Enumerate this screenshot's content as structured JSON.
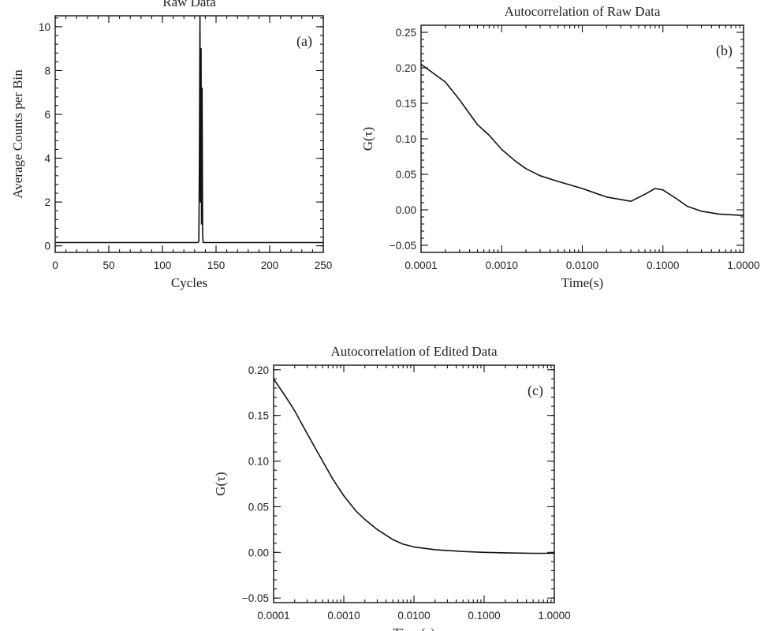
{
  "chart_data": [
    {
      "id": "a",
      "type": "line",
      "title": "Raw Data",
      "xlabel": "Cycles",
      "ylabel": "Average Counts per Bin",
      "panel_label": "(a)",
      "xlim": [
        0,
        250
      ],
      "ylim": [
        -0.3,
        10.5
      ],
      "x_ticks": [
        0,
        50,
        100,
        150,
        200,
        250
      ],
      "x_tick_labels": [
        "0",
        "50",
        "100",
        "150",
        "200",
        "250"
      ],
      "y_ticks": [
        0,
        2,
        4,
        6,
        8,
        10
      ],
      "y_tick_labels": [
        "0",
        "2",
        "4",
        "6",
        "8",
        "10"
      ],
      "series": [
        {
          "x": [
            0,
            50,
            100,
            133,
            134,
            134.5,
            135,
            135.5,
            136,
            136.5,
            137,
            137.5,
            138,
            150,
            200,
            250
          ],
          "y": [
            0.15,
            0.15,
            0.15,
            0.15,
            0.2,
            4.0,
            10.5,
            2.0,
            9.0,
            1.0,
            7.2,
            0.5,
            0.15,
            0.15,
            0.15,
            0.15
          ]
        }
      ]
    },
    {
      "id": "b",
      "type": "line",
      "title": "Autocorrelation of Raw Data",
      "xlabel": "Time(s)",
      "ylabel": "G(τ)",
      "panel_label": "(b)",
      "x_scale": "log",
      "xlim": [
        0.0001,
        1.0
      ],
      "ylim": [
        -0.06,
        0.26
      ],
      "x_ticks": [
        0.0001,
        0.001,
        0.01,
        0.1,
        1.0
      ],
      "x_tick_labels": [
        "0.0001",
        "0.0010",
        "0.0100",
        "0.1000",
        "1.0000"
      ],
      "y_ticks": [
        -0.05,
        0.0,
        0.05,
        0.1,
        0.15,
        0.2,
        0.25
      ],
      "y_tick_labels": [
        "−0.05",
        "0.00",
        "0.05",
        "0.10",
        "0.15",
        "0.20",
        "0.25"
      ],
      "series": [
        {
          "x": [
            0.0001,
            0.0002,
            0.0003,
            0.0005,
            0.0007,
            0.001,
            0.0015,
            0.002,
            0.003,
            0.005,
            0.01,
            0.02,
            0.04,
            0.06,
            0.08,
            0.1,
            0.15,
            0.2,
            0.3,
            0.5,
            1.0
          ],
          "y": [
            0.205,
            0.18,
            0.155,
            0.12,
            0.105,
            0.085,
            0.068,
            0.058,
            0.048,
            0.04,
            0.03,
            0.018,
            0.012,
            0.022,
            0.03,
            0.028,
            0.015,
            0.005,
            -0.002,
            -0.006,
            -0.008
          ]
        }
      ]
    },
    {
      "id": "c",
      "type": "line",
      "title": "Autocorrelation of Edited Data",
      "xlabel": "Time(s)",
      "ylabel": "G(τ)",
      "panel_label": "(c)",
      "x_scale": "log",
      "xlim": [
        0.0001,
        1.0
      ],
      "ylim": [
        -0.055,
        0.205
      ],
      "x_ticks": [
        0.0001,
        0.001,
        0.01,
        0.1,
        1.0
      ],
      "x_tick_labels": [
        "0.0001",
        "0.0010",
        "0.0100",
        "0.1000",
        "1.0000"
      ],
      "y_ticks": [
        -0.05,
        0.0,
        0.05,
        0.1,
        0.15,
        0.2
      ],
      "y_tick_labels": [
        "−0.05",
        "0.00",
        "0.05",
        "0.10",
        "0.15",
        "0.20"
      ],
      "series": [
        {
          "x": [
            0.0001,
            0.00015,
            0.0002,
            0.0003,
            0.0005,
            0.0007,
            0.001,
            0.0015,
            0.002,
            0.003,
            0.005,
            0.007,
            0.01,
            0.02,
            0.05,
            0.1,
            0.2,
            0.5,
            1.0
          ],
          "y": [
            0.19,
            0.17,
            0.155,
            0.13,
            0.1,
            0.08,
            0.062,
            0.045,
            0.036,
            0.025,
            0.014,
            0.009,
            0.006,
            0.003,
            0.001,
            0.0,
            -0.0005,
            -0.001,
            -0.001
          ]
        }
      ]
    }
  ]
}
